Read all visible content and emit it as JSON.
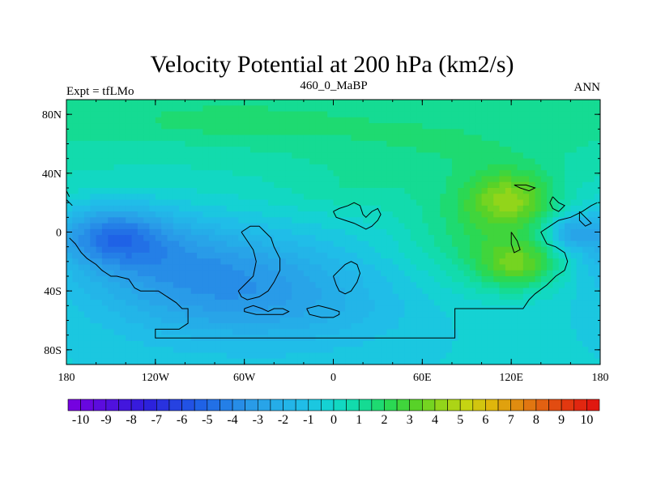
{
  "chart_data": {
    "type": "heatmap",
    "title": "Velocity Potential at 200 hPa (km2/s)",
    "left_label": "Expt = tfLMo",
    "center_label": "460_0_MaBP",
    "right_label": "ANN",
    "x_range": [
      -180,
      180
    ],
    "y_range": [
      -90,
      90
    ],
    "x_ticks": [
      {
        "value": -180,
        "label": "180"
      },
      {
        "value": -120,
        "label": "120W"
      },
      {
        "value": -60,
        "label": "60W"
      },
      {
        "value": 0,
        "label": "0"
      },
      {
        "value": 60,
        "label": "60E"
      },
      {
        "value": 120,
        "label": "120E"
      },
      {
        "value": 180,
        "label": "180"
      }
    ],
    "y_ticks": [
      {
        "value": 80,
        "label": "80N"
      },
      {
        "value": 40,
        "label": "40N"
      },
      {
        "value": 0,
        "label": "0"
      },
      {
        "value": -40,
        "label": "40S"
      },
      {
        "value": -80,
        "label": "80S"
      }
    ],
    "colorbar": {
      "labels": [
        "-10",
        "-9",
        "-8",
        "-7",
        "-6",
        "-5",
        "-4",
        "-3",
        "-2",
        "-1",
        "0",
        "1",
        "2",
        "3",
        "4",
        "5",
        "6",
        "7",
        "8",
        "9",
        "10"
      ],
      "min": -10,
      "max": 10,
      "n_bins": 42,
      "stops": [
        {
          "v": -10,
          "c": "#7b00e0"
        },
        {
          "v": -7,
          "c": "#2d1fdc"
        },
        {
          "v": -5,
          "c": "#1f62e6"
        },
        {
          "v": -3,
          "c": "#2a9ee8"
        },
        {
          "v": -1,
          "c": "#1fc0e8"
        },
        {
          "v": 0,
          "c": "#12d7cc"
        },
        {
          "v": 1,
          "c": "#12dca0"
        },
        {
          "v": 2,
          "c": "#24d95a"
        },
        {
          "v": 3,
          "c": "#52d22a"
        },
        {
          "v": 4,
          "c": "#8fd51a"
        },
        {
          "v": 5,
          "c": "#c6d412"
        },
        {
          "v": 6,
          "c": "#e0b40c"
        },
        {
          "v": 7,
          "c": "#e08810"
        },
        {
          "v": 8,
          "c": "#e25a12"
        },
        {
          "v": 9,
          "c": "#e23010"
        },
        {
          "v": 10,
          "c": "#e01010"
        }
      ]
    },
    "field_features": [
      {
        "lon": -150,
        "lat": -2,
        "amp": -3.2,
        "slon": 25,
        "slat": 14
      },
      {
        "lon": -120,
        "lat": -15,
        "amp": -1.8,
        "slon": 45,
        "slat": 22
      },
      {
        "lon": -60,
        "lat": -28,
        "amp": -2.0,
        "slon": 60,
        "slat": 22
      },
      {
        "lon": -50,
        "lat": -55,
        "amp": -1.5,
        "slon": 70,
        "slat": 20
      },
      {
        "lon": 120,
        "lat": 22,
        "amp": 3.0,
        "slon": 20,
        "slat": 14
      },
      {
        "lon": 125,
        "lat": -22,
        "amp": 3.0,
        "slon": 20,
        "slat": 12
      },
      {
        "lon": 95,
        "lat": 0,
        "amp": 1.6,
        "slon": 32,
        "slat": 26
      },
      {
        "lon": 160,
        "lat": 0,
        "amp": -2.2,
        "slon": 10,
        "slat": 8
      },
      {
        "lon": -80,
        "lat": 75,
        "amp": 0.8,
        "slon": 60,
        "slat": 10
      },
      {
        "lon": 60,
        "lat": 60,
        "amp": 0.8,
        "slon": 80,
        "slat": 18
      },
      {
        "lon": 10,
        "lat": 28,
        "amp": 0.5,
        "slon": 30,
        "slat": 10
      }
    ],
    "coastlines": [
      [
        [
          -178,
          -4
        ],
        [
          -174,
          -8
        ],
        [
          -170,
          -14
        ],
        [
          -166,
          -18
        ],
        [
          -160,
          -22
        ],
        [
          -156,
          -26
        ],
        [
          -150,
          -30
        ],
        [
          -146,
          -30
        ],
        [
          -138,
          -32
        ],
        [
          -134,
          -38
        ],
        [
          -130,
          -40
        ],
        [
          -124,
          -40
        ],
        [
          -118,
          -40
        ],
        [
          -112,
          -44
        ],
        [
          -106,
          -48
        ],
        [
          -102,
          -52
        ],
        [
          -98,
          -52
        ],
        [
          -98,
          -62
        ],
        [
          -104,
          -66
        ],
        [
          -114,
          -66
        ],
        [
          -120,
          -66
        ],
        [
          -120,
          -70
        ],
        [
          -120,
          -72
        ],
        [
          -80,
          -72
        ],
        [
          -30,
          -72
        ],
        [
          10,
          -72
        ],
        [
          40,
          -72
        ],
        [
          68,
          -72
        ],
        [
          76,
          -72
        ],
        [
          82,
          -72
        ],
        [
          82,
          -52
        ],
        [
          110,
          -52
        ],
        [
          128,
          -52
        ],
        [
          132,
          -46
        ],
        [
          136,
          -42
        ],
        [
          144,
          -36
        ],
        [
          150,
          -30
        ],
        [
          156,
          -26
        ],
        [
          158,
          -20
        ],
        [
          156,
          -14
        ],
        [
          150,
          -10
        ],
        [
          144,
          -8
        ],
        [
          142,
          -4
        ],
        [
          140,
          0
        ],
        [
          146,
          4
        ],
        [
          152,
          8
        ],
        [
          160,
          10
        ],
        [
          168,
          14
        ],
        [
          174,
          18
        ],
        [
          178,
          20
        ]
      ],
      [
        [
          -180,
          22
        ],
        [
          -178,
          20
        ],
        [
          -176,
          18
        ]
      ],
      [
        [
          -180,
          28
        ],
        [
          -178,
          24
        ]
      ],
      [
        [
          -62,
          0
        ],
        [
          -58,
          -6
        ],
        [
          -54,
          -12
        ],
        [
          -52,
          -20
        ],
        [
          -54,
          -30
        ],
        [
          -60,
          -36
        ],
        [
          -64,
          -40
        ],
        [
          -62,
          -44
        ],
        [
          -58,
          -46
        ],
        [
          -50,
          -44
        ],
        [
          -44,
          -40
        ],
        [
          -40,
          -34
        ],
        [
          -36,
          -26
        ],
        [
          -36,
          -18
        ],
        [
          -40,
          -10
        ],
        [
          -42,
          -4
        ],
        [
          -46,
          0
        ],
        [
          -50,
          4
        ],
        [
          -56,
          4
        ],
        [
          -62,
          0
        ]
      ],
      [
        [
          0,
          14
        ],
        [
          4,
          16
        ],
        [
          10,
          18
        ],
        [
          14,
          20
        ],
        [
          18,
          18
        ],
        [
          20,
          12
        ],
        [
          22,
          10
        ],
        [
          24,
          12
        ],
        [
          26,
          14
        ],
        [
          30,
          16
        ],
        [
          32,
          12
        ],
        [
          30,
          8
        ],
        [
          26,
          4
        ],
        [
          22,
          2
        ],
        [
          18,
          4
        ],
        [
          14,
          6
        ],
        [
          8,
          8
        ],
        [
          2,
          10
        ],
        [
          0,
          14
        ]
      ],
      [
        [
          0,
          -30
        ],
        [
          4,
          -26
        ],
        [
          8,
          -22
        ],
        [
          12,
          -20
        ],
        [
          16,
          -22
        ],
        [
          18,
          -28
        ],
        [
          16,
          -34
        ],
        [
          12,
          -40
        ],
        [
          8,
          -42
        ],
        [
          4,
          -40
        ],
        [
          2,
          -36
        ],
        [
          0,
          -30
        ]
      ],
      [
        [
          -60,
          -52
        ],
        [
          -54,
          -50
        ],
        [
          -48,
          -52
        ],
        [
          -44,
          -54
        ],
        [
          -40,
          -52
        ],
        [
          -34,
          -52
        ],
        [
          -30,
          -54
        ],
        [
          -34,
          -56
        ],
        [
          -40,
          -56
        ],
        [
          -46,
          -56
        ],
        [
          -52,
          -56
        ],
        [
          -60,
          -54
        ],
        [
          -60,
          -52
        ]
      ],
      [
        [
          -18,
          -52
        ],
        [
          -10,
          -50
        ],
        [
          -2,
          -52
        ],
        [
          4,
          -54
        ],
        [
          4,
          -56
        ],
        [
          0,
          -58
        ],
        [
          -8,
          -58
        ],
        [
          -16,
          -56
        ],
        [
          -18,
          -52
        ]
      ],
      [
        [
          122,
          32
        ],
        [
          126,
          30
        ],
        [
          132,
          28
        ],
        [
          136,
          30
        ],
        [
          130,
          32
        ],
        [
          122,
          32
        ]
      ],
      [
        [
          148,
          24
        ],
        [
          152,
          20
        ],
        [
          156,
          18
        ],
        [
          152,
          14
        ],
        [
          148,
          16
        ],
        [
          146,
          20
        ],
        [
          148,
          24
        ]
      ],
      [
        [
          120,
          0
        ],
        [
          124,
          -6
        ],
        [
          126,
          -12
        ],
        [
          122,
          -14
        ],
        [
          120,
          -8
        ],
        [
          120,
          0
        ]
      ],
      [
        [
          166,
          14
        ],
        [
          170,
          10
        ],
        [
          174,
          6
        ],
        [
          170,
          4
        ],
        [
          166,
          8
        ],
        [
          166,
          14
        ]
      ]
    ]
  }
}
